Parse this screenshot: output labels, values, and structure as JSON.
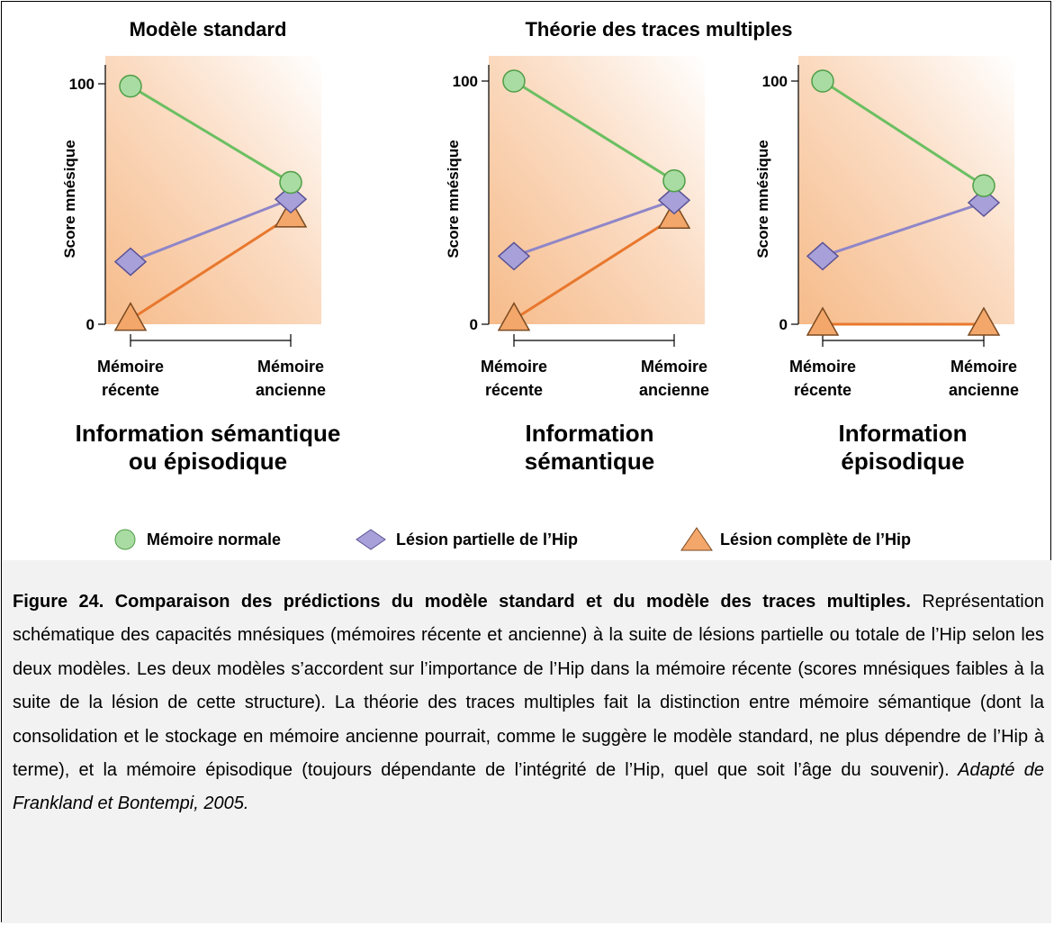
{
  "titles": {
    "standard": "Modèle standard",
    "multiple": "Théorie des traces multiples"
  },
  "colors": {
    "normal_fill": "#a9dca3",
    "normal_line": "#6cbf62",
    "partial_fill": "#a8a0d8",
    "partial_line": "#8f86c8",
    "complete_fill": "#f4a76b",
    "complete_line": "#e8782e",
    "panel_bg": "#f7c9a0"
  },
  "legend": [
    {
      "label": "Mémoire normale",
      "shape": "circle"
    },
    {
      "label": "Lésion partielle de l’Hip",
      "shape": "diamond"
    },
    {
      "label": "Lésion complète de l’Hip",
      "shape": "triangle"
    }
  ],
  "chart_data": [
    {
      "type": "line",
      "ylabel": "Score mnésique",
      "yticks": [
        "0",
        "100"
      ],
      "ylim": [
        0,
        100
      ],
      "categories": [
        [
          "Mémoire",
          "récente"
        ],
        [
          "Mémoire",
          "ancienne"
        ]
      ],
      "info_label": [
        "Information sémantique",
        "ou épisodique"
      ],
      "series": [
        {
          "name": "Mémoire normale",
          "values": [
            99,
            59
          ]
        },
        {
          "name": "Lésion partielle de l’Hip",
          "values": [
            26,
            52
          ]
        },
        {
          "name": "Lésion complète de l’Hip",
          "values": [
            2,
            45
          ]
        }
      ]
    },
    {
      "type": "line",
      "ylabel": "Score mnésique",
      "yticks": [
        "0",
        "100"
      ],
      "ylim": [
        0,
        100
      ],
      "categories": [
        [
          "Mémoire",
          "récente"
        ],
        [
          "Mémoire",
          "ancienne"
        ]
      ],
      "info_label": [
        "Information",
        "sémantique"
      ],
      "series": [
        {
          "name": "Mémoire normale",
          "values": [
            100,
            59
          ]
        },
        {
          "name": "Lésion partielle de l’Hip",
          "values": [
            28,
            51
          ]
        },
        {
          "name": "Lésion complète de l’Hip",
          "values": [
            2,
            44
          ]
        }
      ]
    },
    {
      "type": "line",
      "ylabel": "Score mnésique",
      "yticks": [
        "0",
        "100"
      ],
      "ylim": [
        0,
        100
      ],
      "categories": [
        [
          "Mémoire",
          "récente"
        ],
        [
          "Mémoire",
          "ancienne"
        ]
      ],
      "info_label": [
        "Information",
        "épisodique"
      ],
      "series": [
        {
          "name": "Mémoire normale",
          "values": [
            100,
            57
          ]
        },
        {
          "name": "Lésion partielle de l’Hip",
          "values": [
            28,
            50
          ]
        },
        {
          "name": "Lésion complète de l’Hip",
          "values": [
            0,
            0
          ]
        }
      ]
    }
  ],
  "caption": {
    "bold": "Figure 24. Comparaison des prédictions du modèle standard et du modèle des traces multiples.",
    "text": " Représentation schématique des capacités mnésiques (mémoires récente et ancienne) à la suite de lésions partielle ou totale de l’Hip selon les deux modèles. Les deux modèles s’accordent sur l’importance de l’Hip dans la mémoire récente (scores mnésiques faibles à la suite de la lésion de cette structure). La théorie des traces multiples fait la distinction entre mémoire sémantique (dont la consolidation et le stockage en mémoire ancienne pourrait, comme le suggère le modèle standard, ne plus dépendre de l’Hip à terme), et la mémoire épisodique (toujours dépendante de l’intégrité de l’Hip, quel que soit l’âge du souvenir).",
    "italic": " Adapté de Frankland et Bontempi,  2005."
  }
}
